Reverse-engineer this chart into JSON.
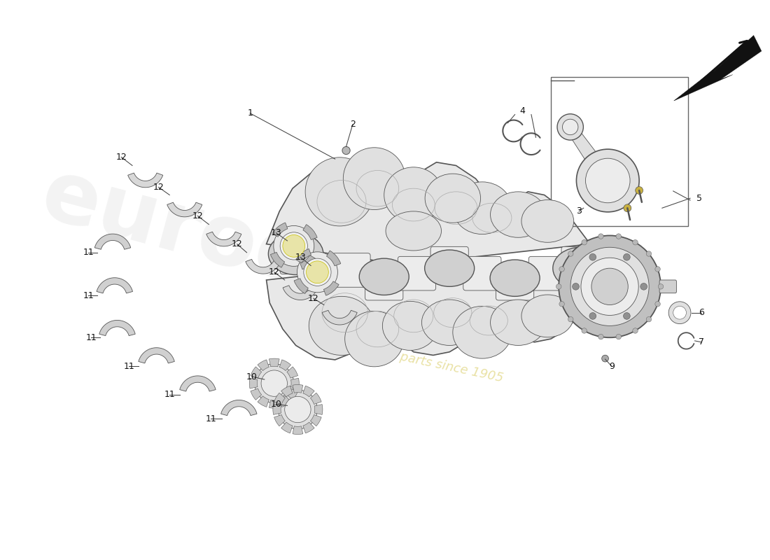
{
  "bg_color": "#ffffff",
  "line_color": "#555555",
  "lw_main": 1.0,
  "lw_thin": 0.6,
  "crank_fill": "#e0e0e0",
  "crank_mid": "#d0d0d0",
  "crank_dark": "#b8b8b8",
  "crank_light": "#ececec",
  "bearing_fill": "#d8d8d8",
  "watermark_gray": "#d8d8d8",
  "watermark_yellow": "#e8e0a0",
  "label_fs": 9
}
